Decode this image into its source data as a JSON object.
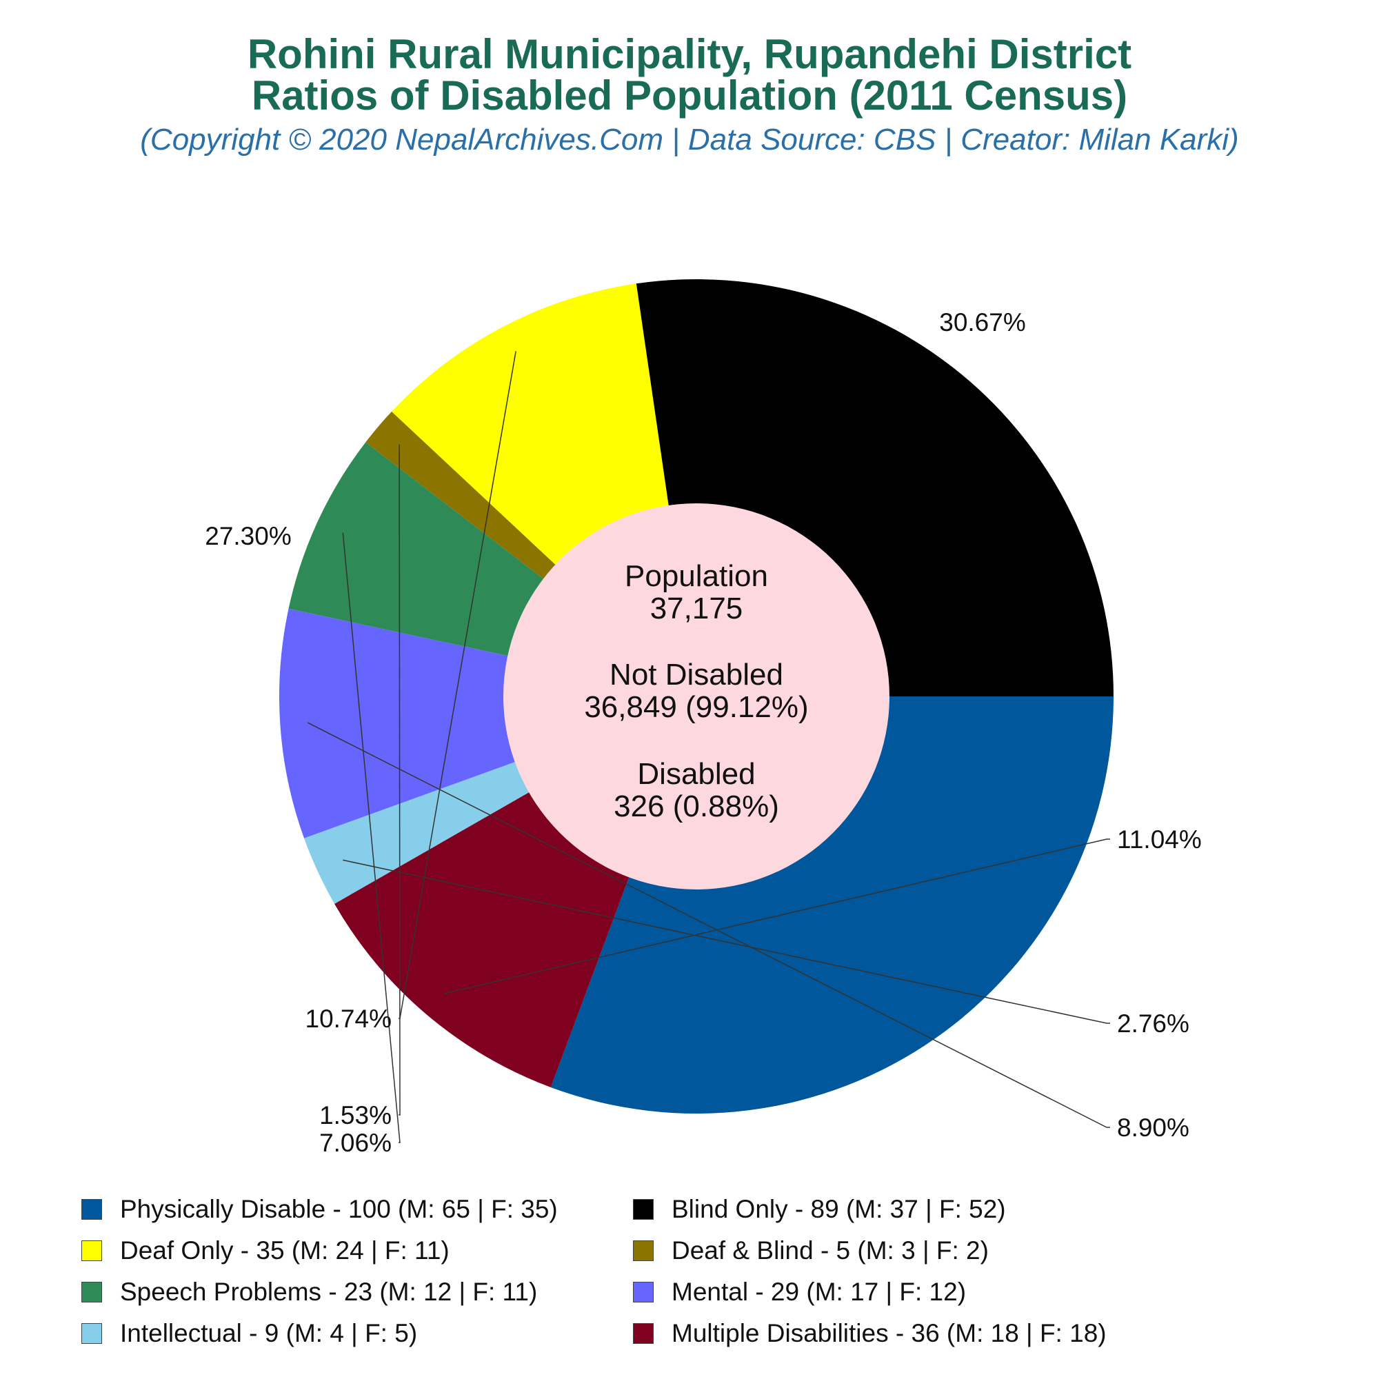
{
  "title_line1": "Rohini Rural Municipality, Rupandehi District",
  "title_line2": "Ratios of Disabled Population (2011 Census)",
  "subtitle": "(Copyright © 2020 NepalArchives.Com | Data Source: CBS | Creator: Milan Karki)",
  "colors": {
    "title": "#1a6b55",
    "subtitle": "#2a6fa8",
    "center": "#fdd9df"
  },
  "center": {
    "population_label": "Population",
    "population_value": "37,175",
    "not_disabled_label": "Not Disabled",
    "not_disabled_value": "36,849 (99.12%)",
    "disabled_label": "Disabled",
    "disabled_value": "326 (0.88%)"
  },
  "chart_data": {
    "type": "pie",
    "title": "Rohini Rural Municipality, Rupandehi District Ratios of Disabled Population (2011 Census)",
    "slices": [
      {
        "label": "Physically Disable - 100 (M: 65 | F: 35)",
        "value": 100,
        "percent": "30.67%",
        "color": "#01579b"
      },
      {
        "label": "Multiple Disabilities - 36 (M: 18 | F: 18)",
        "value": 36,
        "percent": "11.04%",
        "color": "#800020"
      },
      {
        "label": "Intellectual - 9 (M: 4 | F: 5)",
        "value": 9,
        "percent": "2.76%",
        "color": "#87ceeb"
      },
      {
        "label": "Mental - 29 (M: 17 | F: 12)",
        "value": 29,
        "percent": "8.90%",
        "color": "#6666ff"
      },
      {
        "label": "Speech Problems - 23 (M: 12 | F: 11)",
        "value": 23,
        "percent": "7.06%",
        "color": "#2e8b57"
      },
      {
        "label": "Deaf & Blind - 5 (M: 3 | F: 2)",
        "value": 5,
        "percent": "1.53%",
        "color": "#8b7500"
      },
      {
        "label": "Deaf Only - 35 (M: 24 | F: 11)",
        "value": 35,
        "percent": "10.74%",
        "color": "#ffff00"
      },
      {
        "label": "Blind Only - 89 (M: 37 | F: 52)",
        "value": 89,
        "percent": "27.30%",
        "color": "#000000"
      }
    ],
    "legend": [
      {
        "label": "Physically Disable - 100 (M: 65 | F: 35)",
        "color": "#01579b"
      },
      {
        "label": "Blind Only - 89 (M: 37 | F: 52)",
        "color": "#000000"
      },
      {
        "label": "Deaf Only - 35 (M: 24 | F: 11)",
        "color": "#ffff00"
      },
      {
        "label": "Deaf & Blind - 5 (M: 3 | F: 2)",
        "color": "#8b7500"
      },
      {
        "label": "Speech Problems - 23 (M: 12 | F: 11)",
        "color": "#2e8b57"
      },
      {
        "label": "Mental - 29 (M: 17 | F: 12)",
        "color": "#6666ff"
      },
      {
        "label": "Intellectual - 9 (M: 4 | F: 5)",
        "color": "#87ceeb"
      },
      {
        "label": "Multiple Disabilities - 36 (M: 18 | F: 18)",
        "color": "#800020"
      }
    ],
    "legend_position": "bottom"
  }
}
